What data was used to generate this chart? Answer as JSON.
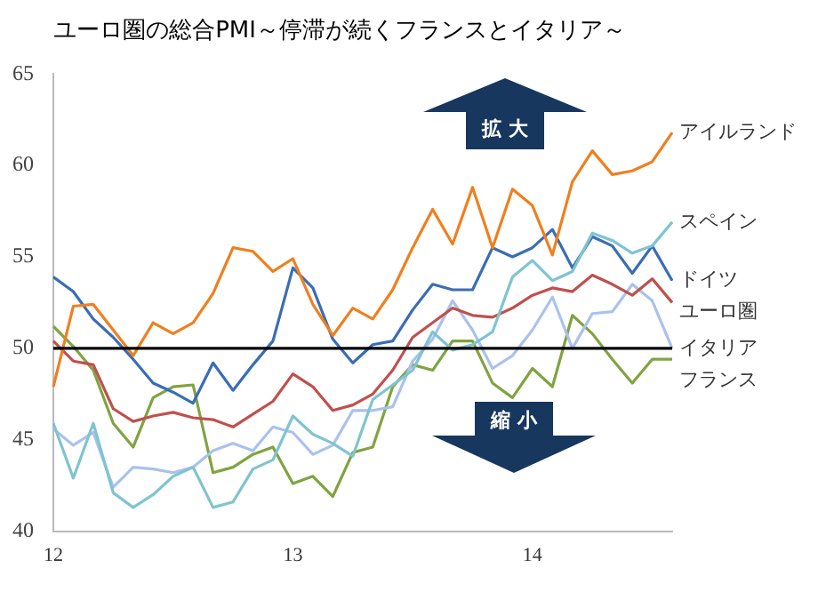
{
  "chart_data": {
    "type": "line",
    "title": "ユーロ圏の総合PMI～停滞が続くフランスとイタリア～",
    "categories": [
      "12",
      null,
      null,
      null,
      null,
      null,
      null,
      null,
      null,
      null,
      null,
      null,
      "13",
      null,
      null,
      null,
      null,
      null,
      null,
      null,
      null,
      null,
      null,
      null,
      "14",
      null,
      null,
      null,
      null,
      null,
      null,
      null
    ],
    "ylim": [
      40,
      65
    ],
    "yticks": [
      40,
      45,
      50,
      55,
      60,
      65
    ],
    "series": [
      {
        "name": "アイルランド",
        "color": "#f07f1e",
        "values": [
          47.9,
          52.3,
          52.4,
          51.0,
          49.6,
          51.4,
          50.8,
          51.4,
          53.0,
          55.5,
          55.3,
          54.2,
          54.9,
          52.4,
          50.7,
          52.2,
          51.6,
          53.2,
          55.5,
          57.6,
          55.7,
          58.8,
          55.5,
          58.7,
          57.8,
          55.1,
          59.1,
          60.8,
          59.5,
          59.7,
          60.2,
          61.8
        ]
      },
      {
        "name": "スペイン",
        "color": "#7fc4d0",
        "values": [
          45.9,
          42.9,
          45.9,
          42.1,
          41.3,
          42.0,
          43.0,
          43.5,
          41.3,
          41.6,
          43.4,
          43.9,
          46.3,
          45.3,
          44.8,
          44.1,
          47.2,
          48.0,
          48.8,
          50.9,
          49.9,
          50.2,
          50.9,
          53.9,
          54.8,
          53.7,
          54.2,
          56.3,
          55.9,
          55.2,
          55.6,
          56.9
        ]
      },
      {
        "name": "ドイツ",
        "color": "#3a6db5",
        "values": [
          53.9,
          53.1,
          51.6,
          50.6,
          49.4,
          48.1,
          47.6,
          47.0,
          49.2,
          47.7,
          49.1,
          50.4,
          54.4,
          53.3,
          50.5,
          49.2,
          50.2,
          50.4,
          52.1,
          53.5,
          53.2,
          53.2,
          55.5,
          55.0,
          55.5,
          56.5,
          54.4,
          56.1,
          55.6,
          54.1,
          55.6,
          53.7
        ]
      },
      {
        "name": "ユーロ圏",
        "color": "#c0504d",
        "values": [
          50.4,
          49.3,
          49.1,
          46.7,
          46.0,
          46.3,
          46.5,
          46.2,
          46.1,
          45.7,
          46.4,
          47.1,
          48.6,
          47.9,
          46.6,
          46.9,
          47.5,
          48.8,
          50.6,
          51.4,
          52.2,
          51.8,
          51.7,
          52.2,
          52.9,
          53.3,
          53.1,
          54.0,
          53.5,
          52.9,
          53.8,
          52.5
        ]
      },
      {
        "name": "イタリア",
        "color": "#a9c2ee",
        "values": [
          45.6,
          44.7,
          45.4,
          42.4,
          43.5,
          43.4,
          43.2,
          43.5,
          44.4,
          44.8,
          44.4,
          45.7,
          45.4,
          44.2,
          44.7,
          46.6,
          46.6,
          46.8,
          49.3,
          50.5,
          52.6,
          51.0,
          48.9,
          49.6,
          51.0,
          52.8,
          50.0,
          51.9,
          52.0,
          53.5,
          52.6,
          50.0
        ]
      },
      {
        "name": "フランス",
        "color": "#7fa440",
        "values": [
          51.2,
          50.1,
          48.8,
          45.9,
          44.6,
          47.3,
          47.9,
          48.0,
          43.2,
          43.5,
          44.2,
          44.6,
          42.6,
          43.0,
          41.9,
          44.3,
          44.6,
          47.9,
          49.1,
          48.8,
          50.4,
          50.4,
          48.1,
          47.3,
          48.9,
          47.9,
          51.8,
          50.8,
          49.4,
          48.1,
          49.4,
          49.4
        ]
      }
    ],
    "ref_lines": [
      {
        "axis": "y",
        "value": 50,
        "color": "#000000"
      }
    ],
    "annotations": [
      "拡 大",
      "縮 小"
    ]
  }
}
